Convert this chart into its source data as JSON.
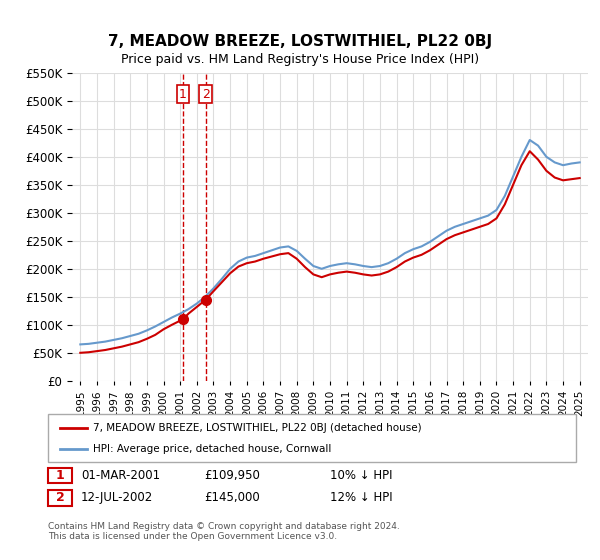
{
  "title": "7, MEADOW BREEZE, LOSTWITHIEL, PL22 0BJ",
  "subtitle": "Price paid vs. HM Land Registry's House Price Index (HPI)",
  "legend_line1": "7, MEADOW BREEZE, LOSTWITHIEL, PL22 0BJ (detached house)",
  "legend_line2": "HPI: Average price, detached house, Cornwall",
  "transaction1_label": "1",
  "transaction1_date": "01-MAR-2001",
  "transaction1_price": "£109,950",
  "transaction1_note": "10% ↓ HPI",
  "transaction2_label": "2",
  "transaction2_date": "12-JUL-2002",
  "transaction2_price": "£145,000",
  "transaction2_note": "12% ↓ HPI",
  "footer": "Contains HM Land Registry data © Crown copyright and database right 2024.\nThis data is licensed under the Open Government Licence v3.0.",
  "red_color": "#cc0000",
  "blue_color": "#6699cc",
  "background_color": "#ffffff",
  "grid_color": "#dddddd",
  "transaction1_x": 2001.17,
  "transaction2_x": 2002.54,
  "ylim_min": 0,
  "ylim_max": 550000,
  "xlim_min": 1994.5,
  "xlim_max": 2025.5
}
